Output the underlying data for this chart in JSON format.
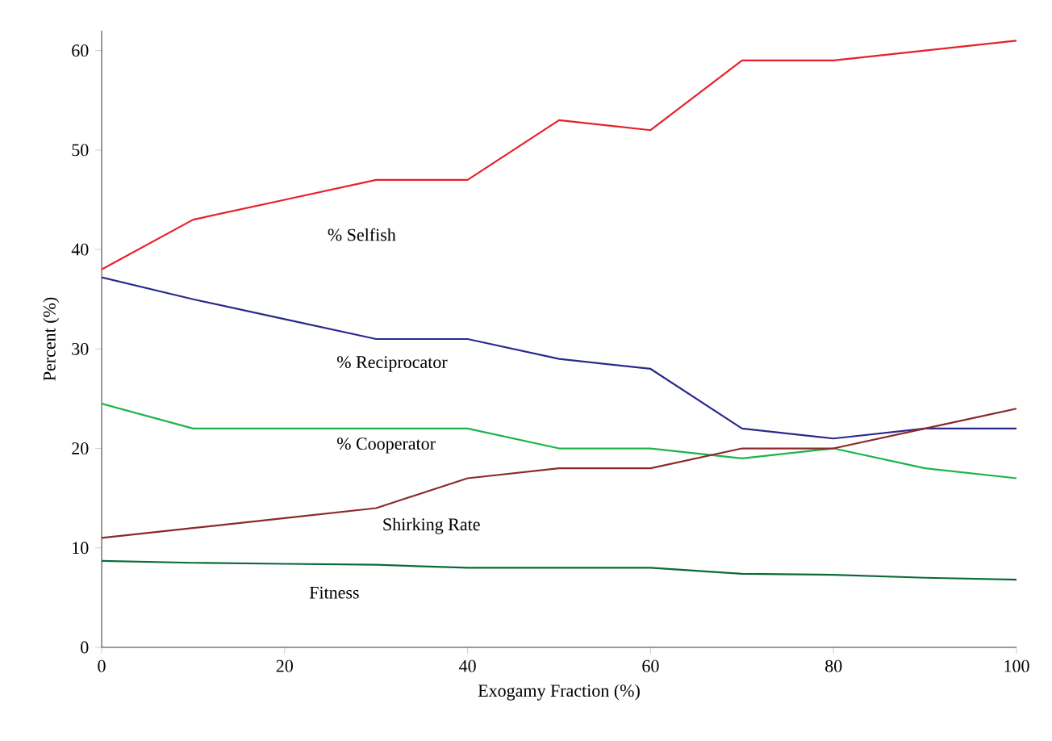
{
  "chart_data": {
    "type": "line",
    "xlabel": "Exogamy Fraction (%)",
    "ylabel": "Percent (%)",
    "x": [
      0,
      10,
      20,
      30,
      40,
      50,
      60,
      70,
      80,
      90,
      100
    ],
    "series": [
      {
        "name": "% Selfish",
        "color": "#e8202a",
        "values": [
          38,
          43,
          45,
          47,
          47,
          53,
          52,
          59,
          59,
          60,
          61
        ]
      },
      {
        "name": "% Reciprocator",
        "color": "#2b2a8c",
        "values": [
          37.2,
          35,
          33,
          31,
          31,
          29,
          28,
          22,
          21,
          22,
          22
        ]
      },
      {
        "name": "% Cooperator",
        "color": "#1db34a",
        "values": [
          24.5,
          22,
          22,
          22,
          22,
          20,
          20,
          19,
          20,
          18,
          17
        ]
      },
      {
        "name": "Shirking Rate",
        "color": "#8b2a2a",
        "values": [
          11,
          12,
          13,
          14,
          17,
          18,
          18,
          20,
          20,
          22,
          24
        ]
      },
      {
        "name": "Fitness",
        "color": "#0a6b3a",
        "values": [
          8.7,
          8.5,
          8.4,
          8.3,
          8.0,
          8.0,
          8.0,
          7.4,
          7.3,
          7.0,
          6.8
        ]
      }
    ],
    "xlim": [
      0,
      100
    ],
    "ylim": [
      0,
      62
    ],
    "xticks": [
      0,
      20,
      40,
      60,
      80,
      100
    ],
    "yticks": [
      0,
      10,
      20,
      30,
      40,
      50,
      60
    ],
    "grid": false,
    "marker": "none",
    "line_style": "solid"
  }
}
